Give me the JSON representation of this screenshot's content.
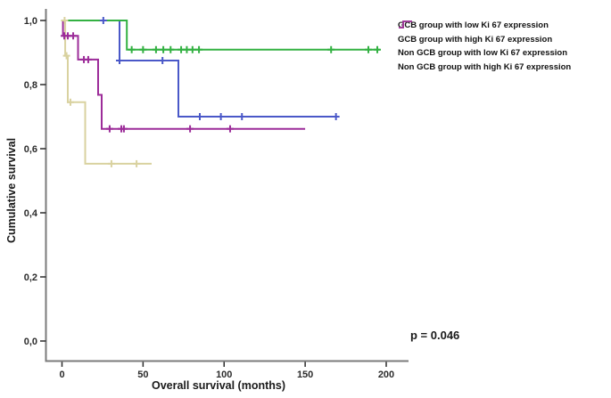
{
  "figure": {
    "p_value_label": "p = 0.046"
  },
  "chart_data": {
    "type": "line",
    "subtype": "kaplan-meier-step",
    "title": "",
    "xlabel": "Overall survival (months)",
    "ylabel": "Cumulative survival",
    "xlim": [
      -10,
      214
    ],
    "ylim": [
      0,
      1.06
    ],
    "xticks": [
      0,
      50,
      100,
      150,
      200
    ],
    "xtick_labels": [
      "0",
      "50",
      "100",
      "150",
      "200"
    ],
    "yticks": [
      0.0,
      0.2,
      0.4,
      0.6,
      0.8,
      1.0
    ],
    "ytick_labels": [
      "0,0",
      "0,2",
      "0,4",
      "0,6",
      "0,8",
      "1,0"
    ],
    "grid": false,
    "legend_position": "top-right",
    "annotation": "p = 0.046",
    "axis_color": "#7b7b7b",
    "tick_color": "#2b2b2b",
    "series": [
      {
        "name": "GCB group with low Ki 67 expression",
        "color": "#4a58c8",
        "points": [
          [
            0,
            1.0
          ],
          [
            35.5,
            1.0
          ],
          [
            35.5,
            0.875
          ],
          [
            71.8,
            0.875
          ],
          [
            71.8,
            0.7
          ],
          [
            170,
            0.7
          ]
        ],
        "censored": [
          [
            25.5,
            1.0
          ],
          [
            35.5,
            0.875
          ],
          [
            62,
            0.875
          ],
          [
            85,
            0.7
          ],
          [
            98,
            0.7
          ],
          [
            111,
            0.7
          ],
          [
            169,
            0.7
          ]
        ]
      },
      {
        "name": "GCB group with high Ki 67 expression",
        "color": "#33b142",
        "points": [
          [
            0,
            1.0
          ],
          [
            40,
            1.0
          ],
          [
            40,
            0.909
          ],
          [
            196,
            0.909
          ]
        ],
        "censored": [
          [
            43,
            0.909
          ],
          [
            50,
            0.909
          ],
          [
            58,
            0.909
          ],
          [
            62.5,
            0.909
          ],
          [
            67,
            0.909
          ],
          [
            73.5,
            0.909
          ],
          [
            77,
            0.909
          ],
          [
            80.5,
            0.909
          ],
          [
            84.5,
            0.909
          ],
          [
            166,
            0.909
          ],
          [
            189,
            0.909
          ],
          [
            194.5,
            0.909
          ]
        ]
      },
      {
        "name": "Non GCB group with low Ki 67 expression",
        "color": "#d9d2a0",
        "points": [
          [
            0,
            1.0
          ],
          [
            2,
            1.0
          ],
          [
            2,
            0.89
          ],
          [
            3.6,
            0.89
          ],
          [
            3.6,
            0.745
          ],
          [
            14.3,
            0.745
          ],
          [
            14.3,
            0.553
          ],
          [
            55.3,
            0.553
          ]
        ],
        "censored": [
          [
            1.6,
            1.0
          ],
          [
            2.8,
            0.89
          ],
          [
            5.2,
            0.745
          ],
          [
            30.5,
            0.553
          ],
          [
            46,
            0.553
          ]
        ]
      },
      {
        "name": "Non GCB group with high Ki 67 expression",
        "color": "#9c2c99",
        "points": [
          [
            0,
            1.0
          ],
          [
            0.6,
            1.0
          ],
          [
            0.6,
            0.952
          ],
          [
            9.9,
            0.952
          ],
          [
            9.9,
            0.878
          ],
          [
            22.3,
            0.878
          ],
          [
            22.3,
            0.768
          ],
          [
            24.5,
            0.768
          ],
          [
            24.5,
            0.662
          ],
          [
            150,
            0.662
          ]
        ],
        "censored": [
          [
            1.4,
            0.952
          ],
          [
            3.6,
            0.952
          ],
          [
            6.9,
            0.952
          ],
          [
            13.5,
            0.878
          ],
          [
            16.2,
            0.878
          ],
          [
            29.4,
            0.662
          ],
          [
            36.6,
            0.662
          ],
          [
            38.2,
            0.662
          ],
          [
            79,
            0.662
          ],
          [
            103.7,
            0.662
          ]
        ]
      }
    ],
    "draw_order": [
      0,
      2,
      3,
      1
    ]
  }
}
